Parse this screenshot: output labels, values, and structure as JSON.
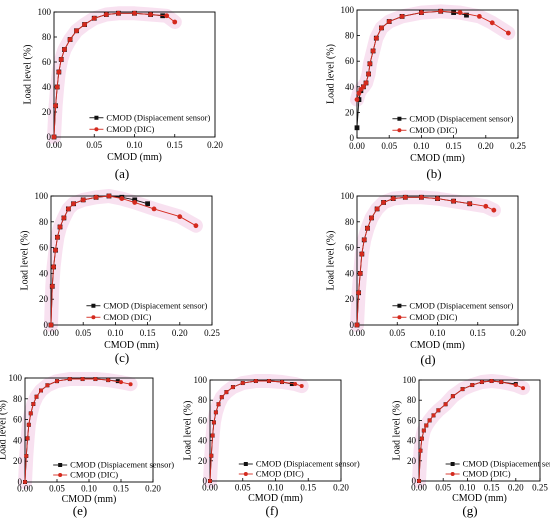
{
  "figure": {
    "panels": [
      {
        "id": "a",
        "caption": "(a)"
      },
      {
        "id": "b",
        "caption": "(b)"
      },
      {
        "id": "c",
        "caption": "(c)"
      },
      {
        "id": "d",
        "caption": "(d)"
      },
      {
        "id": "e",
        "caption": "(e)"
      },
      {
        "id": "f",
        "caption": "(f)"
      },
      {
        "id": "g",
        "caption": "(g)"
      }
    ]
  },
  "colors": {
    "sensor": "#111111",
    "dic": "#d42a1e",
    "band": "#f2c8e4"
  },
  "chart_data": [
    {
      "id": "a",
      "type": "line",
      "caption": "(a)",
      "xlabel": "CMOD (mm)",
      "ylabel": "Load level (%)",
      "xlim": [
        0,
        0.2
      ],
      "ylim": [
        0,
        100
      ],
      "xticks": [
        "0.00",
        "0.05",
        "0.10",
        "0.15",
        "0.20"
      ],
      "yticks": [
        "0",
        "20",
        "40",
        "60",
        "80",
        "100"
      ],
      "legend_position": "bottom-right",
      "series": [
        {
          "name": "CMOD (Dispiacement sensor)",
          "marker": "square",
          "x": [
            0.0,
            0.002,
            0.004,
            0.006,
            0.009,
            0.013,
            0.02,
            0.028,
            0.038,
            0.05,
            0.065,
            0.08,
            0.1,
            0.12,
            0.135
          ],
          "y": [
            0,
            25,
            40,
            52,
            62,
            70,
            78,
            85,
            90,
            95,
            98,
            99,
            99,
            98,
            97
          ]
        },
        {
          "name": "CMOD (DIC)",
          "marker": "circle",
          "x": [
            0.0,
            0.002,
            0.004,
            0.006,
            0.009,
            0.013,
            0.02,
            0.028,
            0.038,
            0.05,
            0.065,
            0.08,
            0.1,
            0.12,
            0.14,
            0.15
          ],
          "y": [
            0,
            25,
            40,
            52,
            62,
            70,
            78,
            85,
            90,
            95,
            98,
            99,
            99,
            98,
            97,
            92
          ]
        }
      ]
    },
    {
      "id": "b",
      "type": "line",
      "caption": "(b)",
      "xlabel": "CMOD (mm)",
      "ylabel": "Load level (%)",
      "xlim": [
        0,
        0.25
      ],
      "ylim": [
        0,
        100
      ],
      "xticks": [
        "0.00",
        "0.05",
        "0.10",
        "0.15",
        "0.20",
        "0.25"
      ],
      "yticks": [
        "0",
        "20",
        "40",
        "60",
        "80",
        "100"
      ],
      "legend_position": "bottom-right",
      "series": [
        {
          "name": "CMOD (Dispiacement sensor)",
          "marker": "square",
          "x": [
            0.0,
            0.003,
            0.006,
            0.01,
            0.014,
            0.018,
            0.02,
            0.025,
            0.03,
            0.038,
            0.05,
            0.07,
            0.1,
            0.13,
            0.15,
            0.17
          ],
          "y": [
            8,
            30,
            37,
            40,
            43,
            50,
            58,
            68,
            78,
            86,
            91,
            95,
            98,
            99,
            98,
            96
          ]
        },
        {
          "name": "CMOD (DIC)",
          "marker": "circle",
          "x": [
            0.0,
            0.003,
            0.006,
            0.01,
            0.014,
            0.018,
            0.02,
            0.025,
            0.03,
            0.038,
            0.05,
            0.07,
            0.1,
            0.13,
            0.16,
            0.19,
            0.21,
            0.235
          ],
          "y": [
            30,
            35,
            38,
            40,
            43,
            50,
            58,
            68,
            78,
            86,
            91,
            95,
            98,
            99,
            98,
            95,
            90,
            82
          ]
        }
      ]
    },
    {
      "id": "c",
      "type": "line",
      "caption": "(c)",
      "xlabel": "CMOD (mm)",
      "ylabel": "Load level (%)",
      "xlim": [
        0,
        0.25
      ],
      "ylim": [
        0,
        100
      ],
      "xticks": [
        "0.00",
        "0.05",
        "0.10",
        "0.15",
        "0.20",
        "0.25"
      ],
      "yticks": [
        "0",
        "20",
        "40",
        "60",
        "80",
        "100"
      ],
      "legend_position": "bottom-right",
      "series": [
        {
          "name": "CMOD (Dispiacement sensor)",
          "marker": "square",
          "x": [
            0.0,
            0.002,
            0.004,
            0.007,
            0.01,
            0.014,
            0.02,
            0.027,
            0.035,
            0.05,
            0.07,
            0.09,
            0.11,
            0.13,
            0.15
          ],
          "y": [
            0,
            30,
            45,
            58,
            68,
            76,
            83,
            90,
            94,
            97,
            99,
            100,
            99,
            97,
            94
          ]
        },
        {
          "name": "CMOD (DIC)",
          "marker": "circle",
          "x": [
            0.0,
            0.002,
            0.004,
            0.007,
            0.01,
            0.014,
            0.02,
            0.027,
            0.035,
            0.05,
            0.07,
            0.09,
            0.11,
            0.13,
            0.16,
            0.2,
            0.225
          ],
          "y": [
            0,
            30,
            45,
            58,
            68,
            76,
            83,
            90,
            94,
            97,
            99,
            100,
            98,
            95,
            90,
            84,
            77
          ]
        }
      ]
    },
    {
      "id": "d",
      "type": "line",
      "caption": "(d)",
      "xlabel": "CMOD (mm)",
      "ylabel": "Load level (%)",
      "xlim": [
        0,
        0.2
      ],
      "ylim": [
        0,
        100
      ],
      "xticks": [
        "0.00",
        "0.05",
        "0.10",
        "0.15",
        "0.20"
      ],
      "yticks": [
        "0",
        "20",
        "40",
        "60",
        "80",
        "100"
      ],
      "legend_position": "bottom-right",
      "series": [
        {
          "name": "CMOD (Dispiacement sensor)",
          "marker": "square",
          "x": [
            0.0,
            0.002,
            0.004,
            0.006,
            0.009,
            0.013,
            0.018,
            0.025,
            0.033,
            0.045,
            0.06,
            0.08,
            0.1,
            0.12,
            0.14
          ],
          "y": [
            0,
            25,
            40,
            55,
            66,
            75,
            83,
            90,
            95,
            98,
            99,
            99,
            98,
            96,
            94
          ]
        },
        {
          "name": "CMOD (DIC)",
          "marker": "circle",
          "x": [
            0.0,
            0.002,
            0.004,
            0.006,
            0.009,
            0.013,
            0.018,
            0.025,
            0.033,
            0.045,
            0.06,
            0.08,
            0.1,
            0.12,
            0.14,
            0.16,
            0.17
          ],
          "y": [
            0,
            25,
            40,
            55,
            66,
            75,
            83,
            90,
            95,
            98,
            99,
            99,
            98,
            96,
            94,
            92,
            89
          ]
        }
      ]
    },
    {
      "id": "e",
      "type": "line",
      "caption": "(e)",
      "xlabel": "CMOD (mm)",
      "ylabel": "Load level (%)",
      "xlim": [
        0,
        0.2
      ],
      "ylim": [
        0,
        100
      ],
      "xticks": [
        "0.00",
        "0.05",
        "0.10",
        "0.15",
        "0.20"
      ],
      "yticks": [
        "0",
        "20",
        "40",
        "60",
        "80",
        "100"
      ],
      "legend_position": "bottom-right",
      "series": [
        {
          "name": "CMOD (Dispiacement sensor)",
          "marker": "square",
          "x": [
            0.0,
            0.002,
            0.004,
            0.006,
            0.009,
            0.013,
            0.018,
            0.025,
            0.035,
            0.05,
            0.07,
            0.09,
            0.11,
            0.13,
            0.145
          ],
          "y": [
            0,
            25,
            42,
            55,
            66,
            75,
            82,
            88,
            93,
            97,
            99,
            99,
            99,
            98,
            97
          ]
        },
        {
          "name": "CMOD (DIC)",
          "marker": "circle",
          "x": [
            0.0,
            0.002,
            0.004,
            0.006,
            0.009,
            0.013,
            0.018,
            0.025,
            0.035,
            0.05,
            0.07,
            0.09,
            0.11,
            0.13,
            0.15,
            0.165
          ],
          "y": [
            0,
            25,
            42,
            55,
            66,
            75,
            82,
            88,
            93,
            97,
            99,
            99,
            99,
            98,
            96,
            94
          ]
        }
      ]
    },
    {
      "id": "f",
      "type": "line",
      "caption": "(f)",
      "xlabel": "CMOD (mm)",
      "ylabel": "Load level (%)",
      "xlim": [
        0,
        0.2
      ],
      "ylim": [
        0,
        100
      ],
      "xticks": [
        "0.00",
        "0.05",
        "0.10",
        "0.15",
        "0.20"
      ],
      "yticks": [
        "0",
        "20",
        "40",
        "60",
        "80",
        "100"
      ],
      "legend_position": "bottom-right",
      "series": [
        {
          "name": "CMOD (Dispiacement sensor)",
          "marker": "square",
          "x": [
            0.0,
            0.002,
            0.004,
            0.006,
            0.009,
            0.013,
            0.018,
            0.025,
            0.035,
            0.05,
            0.07,
            0.09,
            0.11,
            0.125
          ],
          "y": [
            0,
            25,
            45,
            58,
            68,
            76,
            83,
            88,
            93,
            97,
            99,
            99,
            98,
            96
          ]
        },
        {
          "name": "CMOD (DIC)",
          "marker": "circle",
          "x": [
            0.0,
            0.002,
            0.004,
            0.006,
            0.009,
            0.013,
            0.018,
            0.025,
            0.035,
            0.05,
            0.07,
            0.09,
            0.11,
            0.13,
            0.14
          ],
          "y": [
            0,
            25,
            45,
            58,
            68,
            76,
            83,
            88,
            93,
            97,
            99,
            99,
            98,
            96,
            94
          ]
        }
      ]
    },
    {
      "id": "g",
      "type": "line",
      "caption": "(g)",
      "xlabel": "CMOD (mm)",
      "ylabel": "Load level (%)",
      "xlim": [
        0,
        0.25
      ],
      "ylim": [
        0,
        100
      ],
      "xticks": [
        "0.00",
        "0.05",
        "0.10",
        "0.15",
        "0.20",
        "0.25"
      ],
      "yticks": [
        "0",
        "20",
        "40",
        "60",
        "80",
        "100"
      ],
      "legend_position": "bottom-right",
      "series": [
        {
          "name": "CMOD (Dispiacement sensor)",
          "marker": "square",
          "x": [
            0.0,
            0.003,
            0.006,
            0.01,
            0.015,
            0.022,
            0.03,
            0.04,
            0.055,
            0.07,
            0.09,
            0.11,
            0.13,
            0.15,
            0.17,
            0.2
          ],
          "y": [
            0,
            30,
            42,
            50,
            55,
            60,
            65,
            70,
            76,
            84,
            91,
            95,
            98,
            99,
            98,
            96
          ]
        },
        {
          "name": "CMOD (DIC)",
          "marker": "circle",
          "x": [
            0.0,
            0.003,
            0.006,
            0.01,
            0.015,
            0.022,
            0.03,
            0.04,
            0.055,
            0.07,
            0.09,
            0.11,
            0.13,
            0.15,
            0.17,
            0.2,
            0.215
          ],
          "y": [
            0,
            30,
            42,
            50,
            55,
            60,
            65,
            70,
            76,
            84,
            91,
            95,
            98,
            99,
            98,
            95,
            92
          ]
        }
      ]
    }
  ]
}
